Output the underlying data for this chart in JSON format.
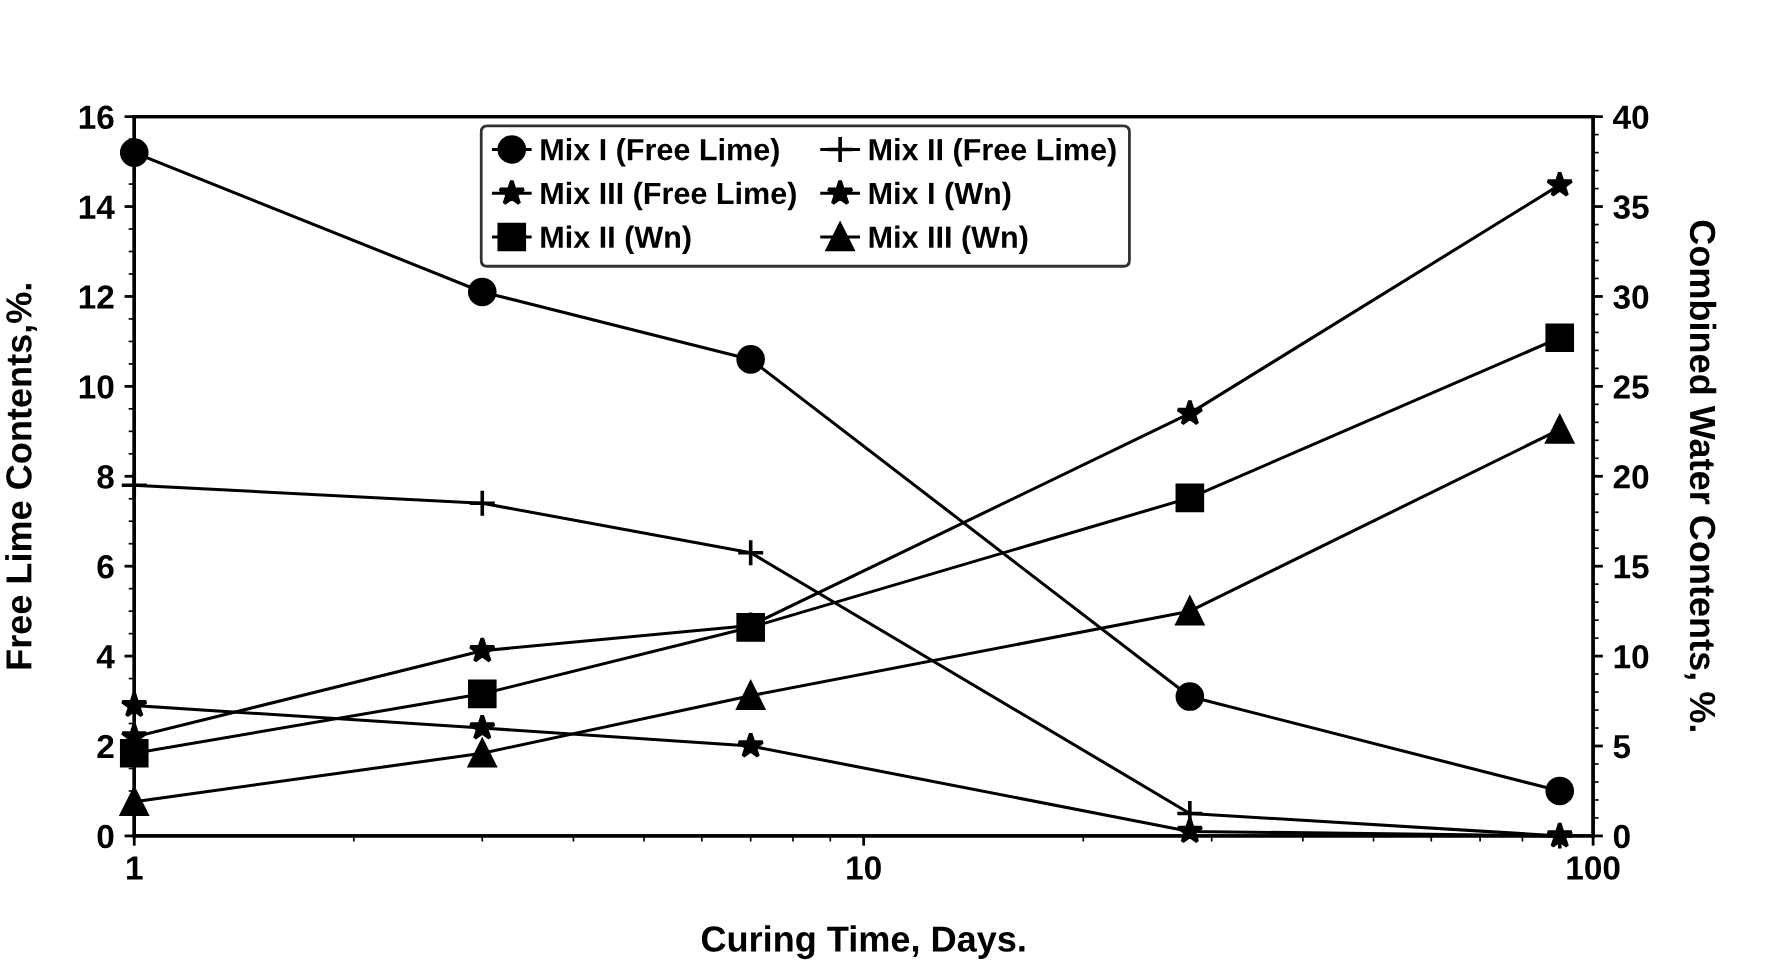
{
  "chart_data": {
    "type": "line",
    "xlabel": "Curing Time, Days.",
    "ylabel": "Free Lime Contents,%.",
    "y2label": "Combined Water Contents, %.",
    "log": "x",
    "xlim": [
      1,
      100
    ],
    "xticks": [
      1,
      10,
      100
    ],
    "ylim": [
      0,
      16
    ],
    "yticks": [
      0,
      2,
      4,
      6,
      8,
      10,
      12,
      14,
      16
    ],
    "y2lim": [
      0,
      40
    ],
    "y2ticks": [
      0,
      5,
      10,
      15,
      20,
      25,
      30,
      35,
      40
    ],
    "grid": false,
    "legend": "top",
    "line_style": "solid",
    "series": [
      {
        "name": "Mix I (Free Lime)",
        "color": "#000000",
        "marker": "circle",
        "x": [
          1,
          3,
          7,
          28,
          90
        ],
        "values": [
          15.2,
          12.1,
          10.6,
          3.1,
          1.0
        ]
      },
      {
        "name": "Mix III (Free Lime)",
        "color": "#000000",
        "marker": "star",
        "x": [
          1,
          3,
          7,
          28,
          90
        ],
        "values": [
          2.9,
          2.4,
          2.0,
          0.1,
          0.0
        ]
      },
      {
        "name": "Mix II (Wn)",
        "color": "#000000",
        "marker": "square",
        "axis": "y2",
        "x": [
          1,
          3,
          7,
          28,
          90
        ],
        "values": [
          4.6,
          7.9,
          11.6,
          18.8,
          27.7
        ]
      },
      {
        "name": "Mix II (Free Lime)",
        "color": "#000000",
        "marker": "cross",
        "x": [
          1,
          3,
          7,
          28,
          90
        ],
        "values": [
          7.8,
          7.4,
          6.3,
          0.5,
          0.0
        ]
      },
      {
        "name": "Mix I (Wn)",
        "color": "#000000",
        "marker": "star",
        "axis": "y2",
        "x": [
          1,
          3,
          7,
          28,
          90
        ],
        "values": [
          5.5,
          10.3,
          11.7,
          23.5,
          36.2
        ]
      },
      {
        "name": "Mix III (Wn)",
        "color": "#000000",
        "marker": "triangle",
        "axis": "y2",
        "x": [
          1,
          3,
          7,
          28,
          90
        ],
        "values": [
          1.9,
          4.6,
          7.8,
          12.5,
          22.6
        ]
      }
    ]
  }
}
